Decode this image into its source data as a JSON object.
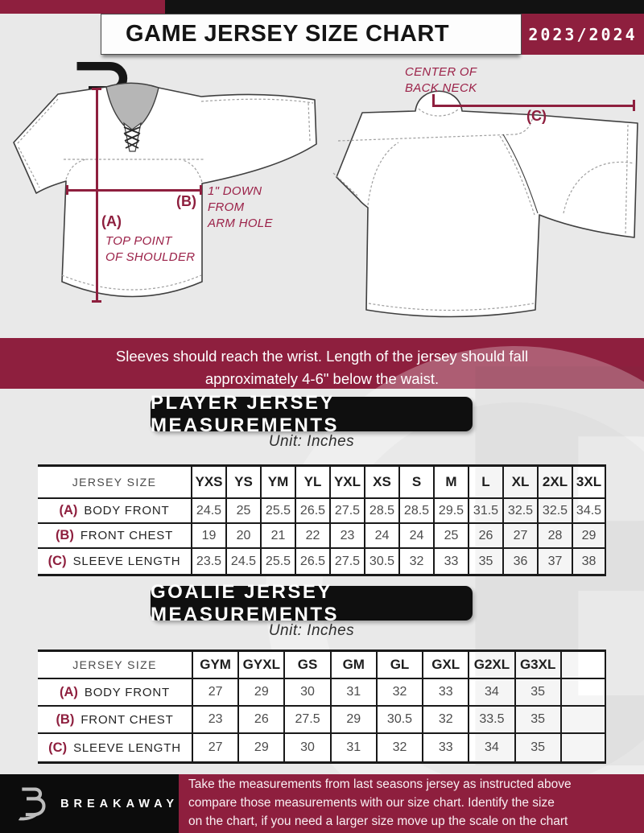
{
  "header": {
    "brand_mark": "B",
    "title": "GAME JERSEY SIZE CHART",
    "season": "2023/2024"
  },
  "diagram": {
    "front": {
      "a_key": "(A)",
      "a_note_line1": "TOP POINT",
      "a_note_line2": "OF SHOULDER",
      "b_key": "(B)",
      "b_note_line1": "1\" DOWN",
      "b_note_line2": "FROM",
      "b_note_line3": "ARM HOLE"
    },
    "back": {
      "c_key": "(C)",
      "c_note_line1": "CENTER OF",
      "c_note_line2": "BACK NECK"
    }
  },
  "notice": {
    "line1": "Sleeves should reach the wrist. Length of the jersey should fall",
    "line2": "approximately 4-6\" below the waist."
  },
  "player_table": {
    "title": "PLAYER JERSEY MEASUREMENTS",
    "unit": "Unit: Inches",
    "header_label": "JERSEY SIZE",
    "sizes": [
      "YXS",
      "YS",
      "YM",
      "YL",
      "YXL",
      "XS",
      "S",
      "M",
      "L",
      "XL",
      "2XL",
      "3XL"
    ],
    "rows": [
      {
        "key": "(A)",
        "label": "BODY FRONT",
        "values": [
          "24.5",
          "25",
          "25.5",
          "26.5",
          "27.5",
          "28.5",
          "28.5",
          "29.5",
          "31.5",
          "32.5",
          "32.5",
          "34.5"
        ]
      },
      {
        "key": "(B)",
        "label": "FRONT CHEST",
        "values": [
          "19",
          "20",
          "21",
          "22",
          "23",
          "24",
          "24",
          "25",
          "26",
          "27",
          "28",
          "29"
        ]
      },
      {
        "key": "(C)",
        "label": "SLEEVE LENGTH",
        "values": [
          "23.5",
          "24.5",
          "25.5",
          "26.5",
          "27.5",
          "30.5",
          "32",
          "33",
          "35",
          "36",
          "37",
          "38"
        ]
      }
    ]
  },
  "goalie_table": {
    "title": "GOALIE JERSEY MEASUREMENTS",
    "unit": "Unit: Inches",
    "header_label": "JERSEY SIZE",
    "sizes": [
      "GYM",
      "GYXL",
      "GS",
      "GM",
      "GL",
      "GXL",
      "G2XL",
      "G3XL",
      ""
    ],
    "rows": [
      {
        "key": "(A)",
        "label": "BODY FRONT",
        "values": [
          "27",
          "29",
          "30",
          "31",
          "32",
          "33",
          "34",
          "35",
          ""
        ]
      },
      {
        "key": "(B)",
        "label": "FRONT CHEST",
        "values": [
          "23",
          "26",
          "27.5",
          "29",
          "30.5",
          "32",
          "33.5",
          "35",
          ""
        ]
      },
      {
        "key": "(C)",
        "label": "SLEEVE LENGTH",
        "values": [
          "27",
          "29",
          "30",
          "31",
          "32",
          "33",
          "34",
          "35",
          ""
        ]
      }
    ]
  },
  "footer": {
    "brand": "BREAKAWAY",
    "line1": "Take the measurements from last seasons jersey as instructed above",
    "line2": "compare those measurements  with our size chart. Identify the size",
    "line3": "on the chart, if you need a larger size move up the scale on the chart"
  },
  "colors": {
    "maroon": "#8e1f3e",
    "black": "#111111",
    "background": "#e9e9e9",
    "annotation": "#9b2148"
  }
}
